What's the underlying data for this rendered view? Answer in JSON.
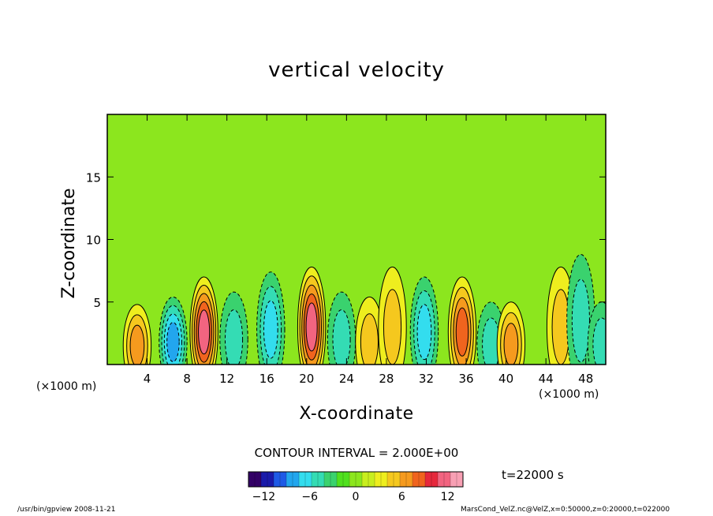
{
  "chart_data": {
    "type": "heatmap",
    "title": "vertical velocity",
    "xlabel": "X-coordinate",
    "ylabel": "Z-coordinate",
    "x_unit": "(×1000 m)",
    "xlim": [
      0,
      50
    ],
    "ylim": [
      0,
      20
    ],
    "x_ticks": [
      4,
      8,
      12,
      16,
      20,
      24,
      28,
      32,
      36,
      40,
      44,
      48
    ],
    "y_ticks": [
      5,
      10,
      15
    ],
    "contour_interval": "CONTOUR INTERVAL = 2.000E+00",
    "time_label": "t=22000 s",
    "colorbar": {
      "min": -14,
      "max": 14,
      "ticks": [
        -12,
        -6,
        0,
        6,
        12
      ],
      "colors": [
        "#330066",
        "#1a1aaa",
        "#1e5ae6",
        "#22a6ee",
        "#33ddee",
        "#34dcb4",
        "#3ad26e",
        "#50e01e",
        "#8ce61e",
        "#c8ee1e",
        "#eeee1e",
        "#f5c81e",
        "#f59a1e",
        "#f0641e",
        "#e6283c",
        "#f26480",
        "#f8a0b4"
      ]
    },
    "cells": [
      {
        "x": 3.0,
        "z": 1.5,
        "value": 6.5
      },
      {
        "x": 6.6,
        "z": 1.8,
        "value": -9.0
      },
      {
        "x": 9.7,
        "z": 2.6,
        "value": 11.5
      },
      {
        "x": 12.7,
        "z": 2.0,
        "value": -5.0
      },
      {
        "x": 16.4,
        "z": 2.8,
        "value": -7.0
      },
      {
        "x": 20.5,
        "z": 3.0,
        "value": 10.0
      },
      {
        "x": 23.5,
        "z": 2.0,
        "value": -5.5
      },
      {
        "x": 26.3,
        "z": 1.8,
        "value": 4.0
      },
      {
        "x": 28.6,
        "z": 3.0,
        "value": 4.0
      },
      {
        "x": 31.8,
        "z": 2.6,
        "value": -7.0
      },
      {
        "x": 35.6,
        "z": 2.6,
        "value": 9.5
      },
      {
        "x": 38.5,
        "z": 1.6,
        "value": -4.5
      },
      {
        "x": 40.5,
        "z": 1.6,
        "value": 6.0
      },
      {
        "x": 45.5,
        "z": 3.0,
        "value": 4.0
      },
      {
        "x": 47.5,
        "z": 3.5,
        "value": -5.0
      },
      {
        "x": 49.6,
        "z": 1.6,
        "value": -5.0
      }
    ]
  },
  "footer": {
    "left": "/usr/bin/gpview   2008-11-21",
    "right": "MarsCond_VelZ.nc@VelZ,x=0:50000,z=0:20000,t=022000"
  }
}
